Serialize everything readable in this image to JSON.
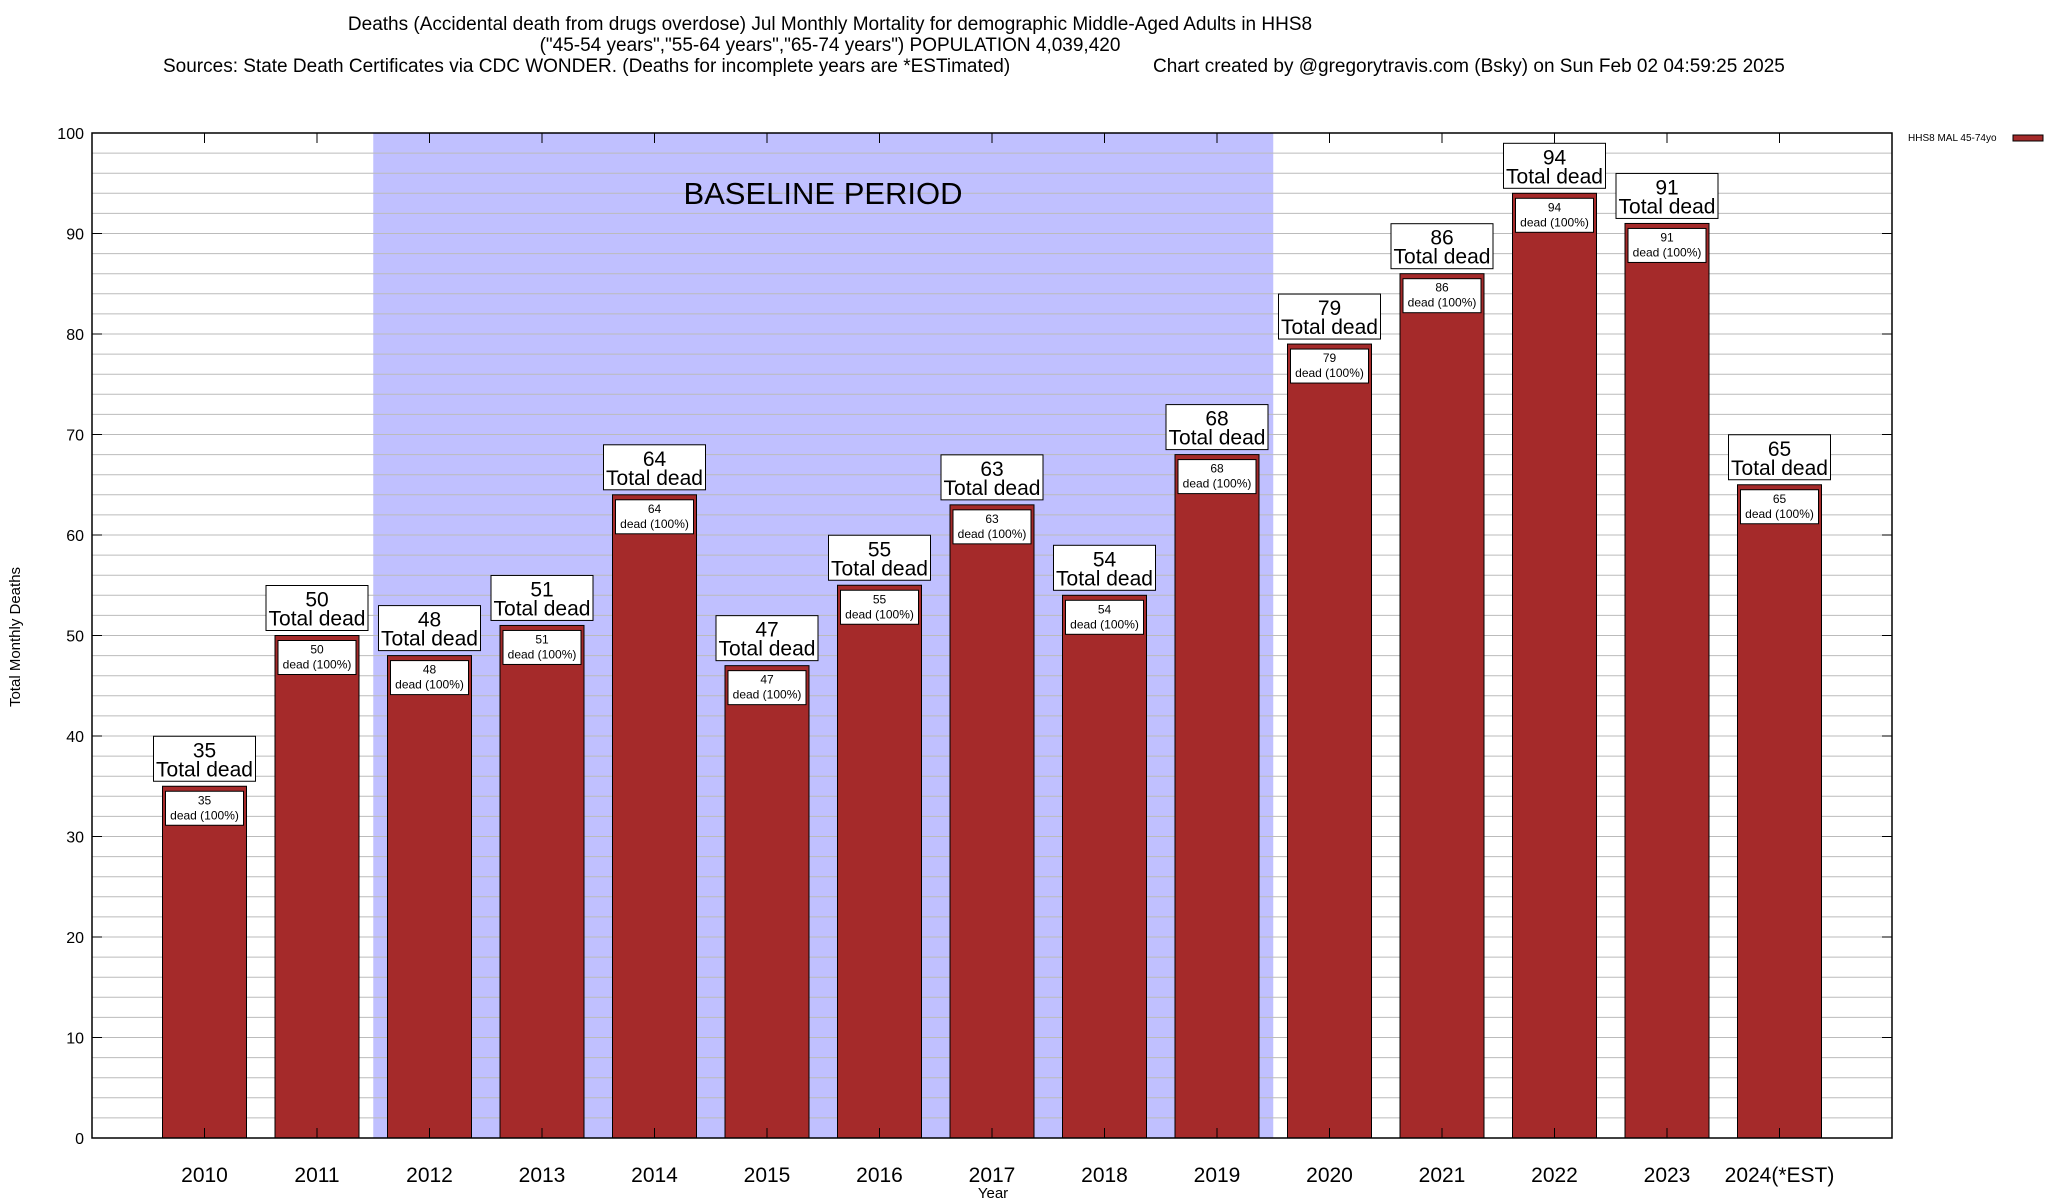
{
  "chart_data": {
    "type": "bar",
    "title_lines": [
      "Deaths (Accidental death from drugs overdose) Jul Monthly Mortality for demographic Middle-Aged Adults in HHS8",
      "(\"45-54 years\",\"55-64 years\",\"65-74 years\") POPULATION 4,039,420"
    ],
    "sources": "Sources: State Death Certificates via CDC WONDER. (Deaths for incomplete years are *ESTimated)",
    "credit": "Chart created by @gregorytravis.com (Bsky) on Sun Feb 02 04:59:25 2025",
    "xlabel": "Year",
    "ylabel": "Total Monthly Deaths",
    "ylim": [
      0,
      100
    ],
    "yticks": [
      0,
      10,
      20,
      30,
      40,
      50,
      60,
      70,
      80,
      90,
      100
    ],
    "minor_grid_step": 2,
    "grid": true,
    "categories": [
      "2010",
      "2011",
      "2012",
      "2013",
      "2014",
      "2015",
      "2016",
      "2017",
      "2018",
      "2019",
      "2020",
      "2021",
      "2022",
      "2023",
      "2024(*EST)"
    ],
    "series": [
      {
        "name": "HHS8 MAL 45-74yo",
        "color": "#a52a2a",
        "values": [
          35,
          50,
          48,
          51,
          64,
          47,
          55,
          63,
          54,
          68,
          79,
          86,
          94,
          91,
          65
        ]
      }
    ],
    "total_label": "Total dead",
    "inner_label": "dead (100%)",
    "legend": {
      "label": "HHS8 MAL 45-74yo",
      "placement": "top-right-outside"
    },
    "annotation": {
      "text": "BASELINE PERIOD",
      "from_category": "2012",
      "to_category": "2019",
      "color": "#c0c0ff"
    }
  }
}
